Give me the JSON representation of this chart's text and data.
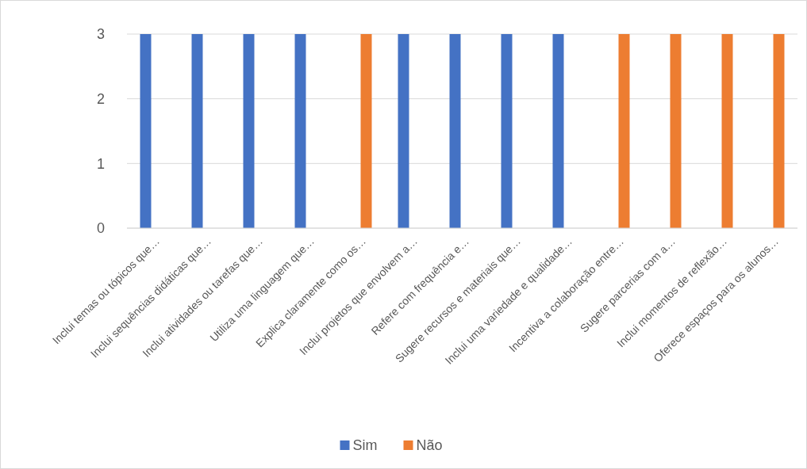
{
  "chart_data": {
    "type": "bar",
    "categories": [
      "Inclui temas ou tópicos que…",
      "Inclui sequências didáticas que…",
      "Inclui atividades ou tarefas que…",
      "Utiliza uma linguagem que…",
      "Explica claramente como os…",
      "Inclui projetos que envolvem a…",
      "Refere com frequência e…",
      "Sugere recursos e materiais que…",
      "Inclui uma variedade e qualidade…",
      "Incentiva a colaboração entre…",
      "Sugere parcerias com a…",
      "Inclui momentos de reflexão…",
      "Oferece espaços para os alunos…"
    ],
    "series": [
      {
        "name": "Sim",
        "color": "#4472c4",
        "values": [
          3,
          3,
          3,
          3,
          0,
          3,
          3,
          3,
          3,
          0,
          0,
          0,
          0
        ]
      },
      {
        "name": "Não",
        "color": "#ed7d31",
        "values": [
          0,
          0,
          0,
          0,
          3,
          0,
          0,
          0,
          0,
          3,
          3,
          3,
          3
        ]
      }
    ],
    "ylim": [
      0,
      3
    ],
    "yticks": [
      0,
      1,
      2,
      3
    ],
    "grid": "y",
    "legend": "bottom"
  }
}
